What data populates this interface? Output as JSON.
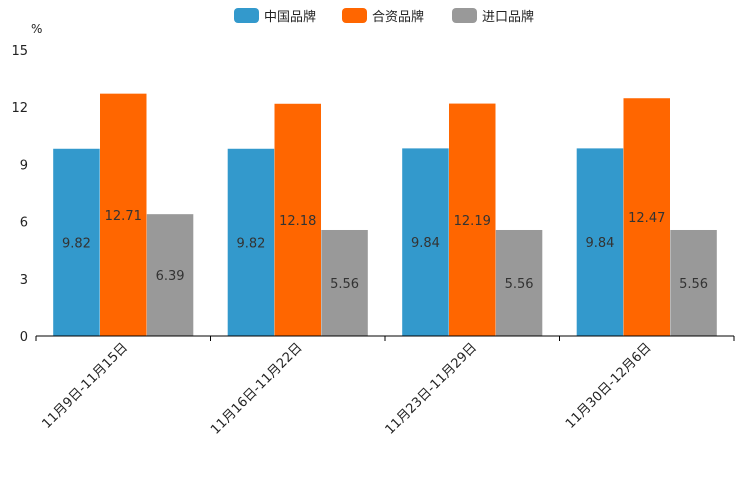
{
  "chart_data": {
    "type": "bar",
    "unit_label": "%",
    "categories": [
      "11月9日-11月15日",
      "11月16日-11月22日",
      "11月23日-11月29日",
      "11月30日-12月6日"
    ],
    "series": [
      {
        "name": "中国品牌",
        "color": "#3399cc",
        "values": [
          9.82,
          9.82,
          9.84,
          9.84
        ]
      },
      {
        "name": "合资品牌",
        "color": "#ff6600",
        "values": [
          12.71,
          12.18,
          12.19,
          12.47
        ]
      },
      {
        "name": "进口品牌",
        "color": "#999999",
        "values": [
          6.39,
          5.56,
          5.56,
          5.56
        ]
      }
    ],
    "ylim": [
      0,
      15
    ],
    "yticks": [
      0,
      3,
      6,
      9,
      12,
      15
    ],
    "legend_position": "top-center",
    "grid": false
  }
}
